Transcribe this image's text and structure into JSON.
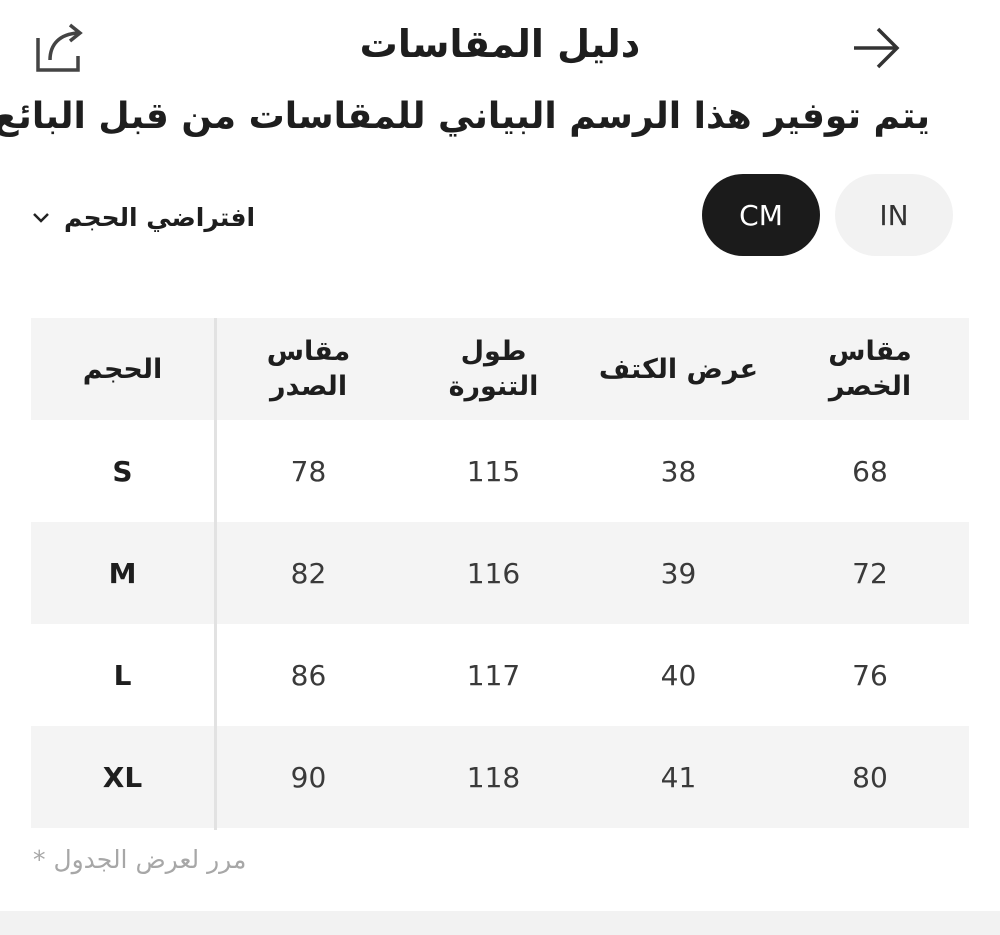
{
  "header": {
    "title": "دليل المقاسات",
    "share_icon": "share-icon",
    "forward_icon": "arrow-right-icon"
  },
  "subtitle": "يتم توفير هذا الرسم البياني للمقاسات من قبل البائع",
  "size_selector": {
    "label": "افتراضي الحجم",
    "icon": "chevron-down-icon"
  },
  "units": {
    "cm": "CM",
    "in": "IN",
    "selected": "CM",
    "selected_color": "#1b1b1b"
  },
  "table": {
    "headers": {
      "size": "الحجم",
      "chest_line1": "مقاس",
      "chest_line2": "الصدر",
      "skirt_line1": "طول",
      "skirt_line2": "التنورة",
      "shoulder": "عرض الكتف",
      "waist_line1": "مقاس",
      "waist_line2": "الخصر"
    },
    "rows": [
      {
        "size": "S",
        "chest": "78",
        "skirt": "115",
        "shoulder": "38",
        "waist": "68"
      },
      {
        "size": "M",
        "chest": "82",
        "skirt": "116",
        "shoulder": "39",
        "waist": "72"
      },
      {
        "size": "L",
        "chest": "86",
        "skirt": "117",
        "shoulder": "40",
        "waist": "76"
      },
      {
        "size": "XL",
        "chest": "90",
        "skirt": "118",
        "shoulder": "41",
        "waist": "80"
      }
    ]
  },
  "footnote": "مرر لعرض الجدول *"
}
